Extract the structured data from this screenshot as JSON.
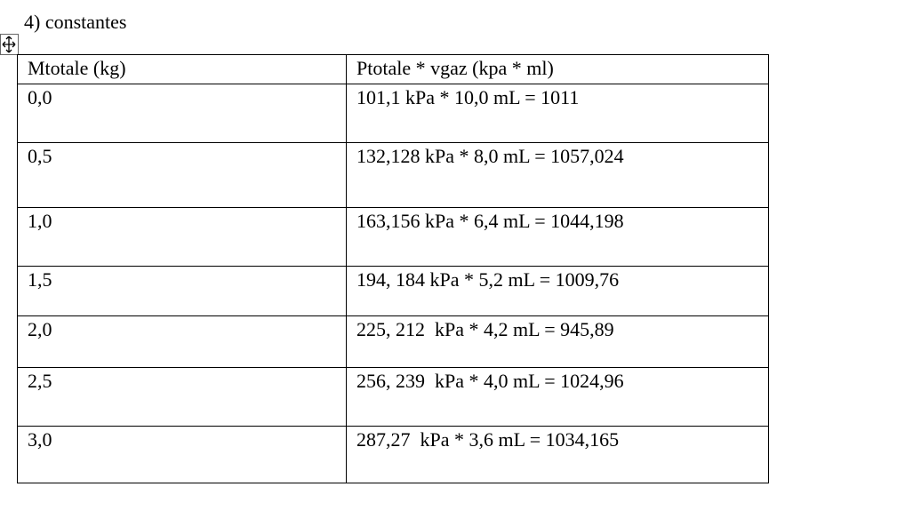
{
  "title": "4) constantes",
  "table": {
    "header": [
      "Mtotale (kg)",
      "Ptotale * vgaz (kpa * ml)"
    ],
    "rows": [
      [
        "0,0",
        "101,1 kPa * 10,0 mL = 1011"
      ],
      [
        "0,5",
        "132,128 kPa * 8,0 mL = 1057,024"
      ],
      [
        "1,0",
        "163,156 kPa * 6,4 mL = 1044,198"
      ],
      [
        "1,5",
        "194, 184 kPa * 5,2 mL = 1009,76"
      ],
      [
        "2,0",
        "225, 212  kPa * 4,2 mL = 945,89"
      ],
      [
        "2,5",
        "256, 239  kPa * 4,0 mL = 1024,96"
      ],
      [
        "3,0",
        "287,27  kPa * 3,6 mL = 1034,165"
      ]
    ]
  }
}
